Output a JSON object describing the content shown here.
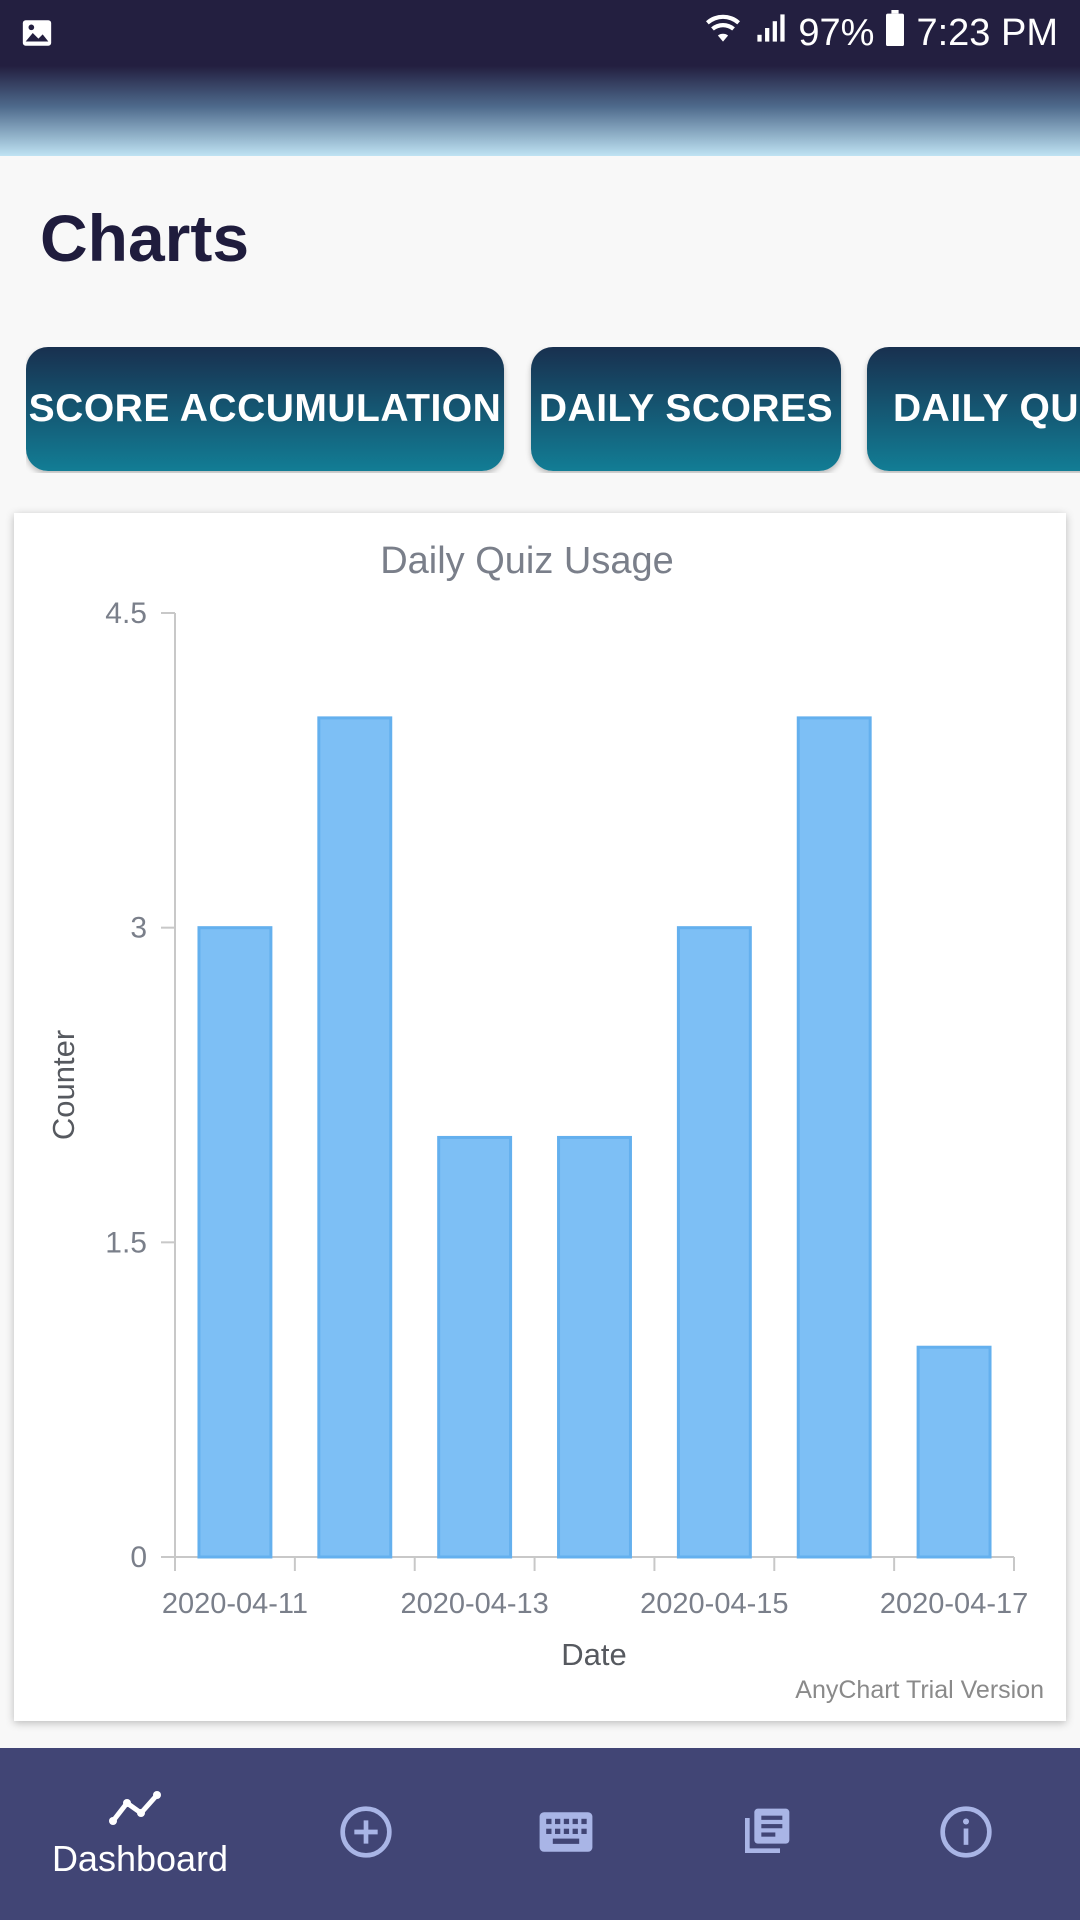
{
  "status_bar": {
    "battery": "97%",
    "time": "7:23 PM"
  },
  "page": {
    "title": "Charts"
  },
  "tabs": [
    {
      "label": "SCORE ACCUMULATION"
    },
    {
      "label": "DAILY SCORES"
    },
    {
      "label": "DAILY QUIZ"
    }
  ],
  "chart_data": {
    "type": "bar",
    "title": "Daily Quiz Usage",
    "xlabel": "Date",
    "ylabel": "Counter",
    "categories": [
      "2020-04-11",
      "2020-04-12",
      "2020-04-13",
      "2020-04-14",
      "2020-04-15",
      "2020-04-16",
      "2020-04-17"
    ],
    "x_tick_labels": [
      "2020-04-11",
      "2020-04-13",
      "2020-04-15",
      "2020-04-17"
    ],
    "values": [
      3,
      4,
      2,
      2,
      3,
      4,
      1
    ],
    "ylim": [
      0,
      4.5
    ],
    "y_ticks": [
      0,
      1.5,
      3,
      4.5
    ],
    "y_tick_labels": [
      "0",
      "1.5",
      "3",
      "4.5"
    ],
    "bar_color": "#7dbff5",
    "bar_stroke": "#64b0ee",
    "grid": false,
    "watermark": "AnyChart Trial Version"
  },
  "bottom_nav": {
    "items": [
      {
        "label": "Dashboard",
        "icon": "chart-line-icon"
      },
      {
        "icon": "add-circle-icon"
      },
      {
        "icon": "keyboard-icon"
      },
      {
        "icon": "library-books-icon"
      },
      {
        "icon": "info-icon"
      }
    ]
  }
}
